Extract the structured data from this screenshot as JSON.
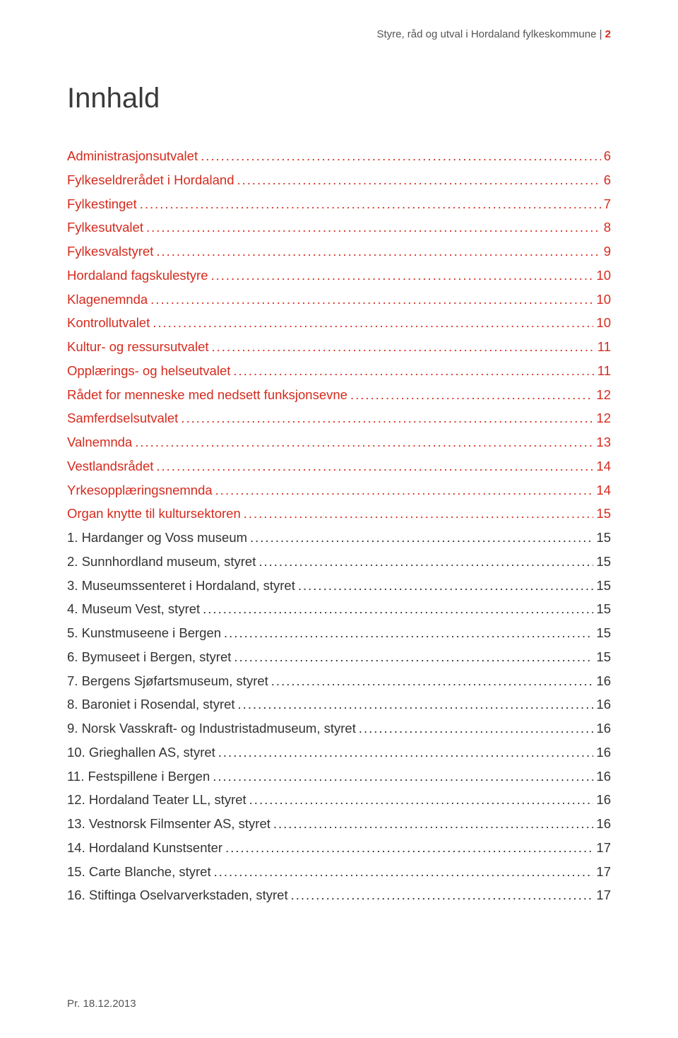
{
  "header": {
    "gray_text": "Styre, råd og utval i Hordaland fylkeskommune | ",
    "red_text": "2"
  },
  "title": "Innhald",
  "toc": [
    {
      "label": "Administrasjonsutvalet",
      "page": "6",
      "style": "red"
    },
    {
      "label": "Fylkeseldrerådet i Hordaland",
      "page": "6",
      "style": "red"
    },
    {
      "label": "Fylkestinget",
      "page": "7",
      "style": "red"
    },
    {
      "label": "Fylkesutvalet",
      "page": "8",
      "style": "red"
    },
    {
      "label": "Fylkesvalstyret",
      "page": "9",
      "style": "red"
    },
    {
      "label": "Hordaland fagskulestyre",
      "page": "10",
      "style": "red"
    },
    {
      "label": "Klagenemnda",
      "page": "10",
      "style": "red"
    },
    {
      "label": "Kontrollutvalet",
      "page": "10",
      "style": "red"
    },
    {
      "label": "Kultur- og ressursutvalet",
      "page": "11",
      "style": "red"
    },
    {
      "label": "Opplærings- og helseutvalet",
      "page": "11",
      "style": "red"
    },
    {
      "label": "Rådet for menneske med nedsett  funksjonsevne",
      "page": "12",
      "style": "red"
    },
    {
      "label": "Samferdselsutvalet",
      "page": "12",
      "style": "red"
    },
    {
      "label": "Valnemnda",
      "page": "13",
      "style": "red"
    },
    {
      "label": "Vestlandsrådet",
      "page": "14",
      "style": "red"
    },
    {
      "label": "Yrkesopplæringsnemnda",
      "page": "14",
      "style": "red"
    },
    {
      "label": "Organ knytte til kultursektoren",
      "page": "15",
      "style": "red"
    },
    {
      "label": "1. Hardanger og Voss museum",
      "page": " 15",
      "style": "black"
    },
    {
      "label": "2. Sunnhordland museum, styret",
      "page": " 15",
      "style": "black"
    },
    {
      "label": "3. Museumssenteret i Hordaland, styret",
      "page": " 15",
      "style": "black"
    },
    {
      "label": "4. Museum Vest, styret",
      "page": " 15",
      "style": "black"
    },
    {
      "label": "5. Kunstmuseene i Bergen",
      "page": " 15",
      "style": "black"
    },
    {
      "label": "6. Bymuseet i Bergen, styret",
      "page": " 15",
      "style": "black"
    },
    {
      "label": "7. Bergens Sjøfartsmuseum, styret",
      "page": " 16",
      "style": "black"
    },
    {
      "label": "8. Baroniet i Rosendal, styret",
      "page": " 16",
      "style": "black"
    },
    {
      "label": "9. Norsk Vasskraft- og Industristadmuseum, styret",
      "page": " 16",
      "style": "black"
    },
    {
      "label": "10. Grieghallen AS, styret",
      "page": " 16",
      "style": "black"
    },
    {
      "label": "11. Festspillene i Bergen",
      "page": " 16",
      "style": "black"
    },
    {
      "label": "12. Hordaland Teater LL, styret",
      "page": " 16",
      "style": "black"
    },
    {
      "label": "13. Vestnorsk Filmsenter AS, styret",
      "page": " 16",
      "style": "black"
    },
    {
      "label": "14. Hordaland Kunstsenter",
      "page": " 17",
      "style": "black"
    },
    {
      "label": "15. Carte Blanche, styret",
      "page": " 17",
      "style": "black"
    },
    {
      "label": "16. Stiftinga Oselvarverkstaden, styret",
      "page": " 17",
      "style": "black"
    }
  ],
  "footer": "Pr. 18.12.2013",
  "colors": {
    "red": "#d52b1e",
    "text": "#333333",
    "gray": "#555555",
    "background": "#ffffff"
  }
}
